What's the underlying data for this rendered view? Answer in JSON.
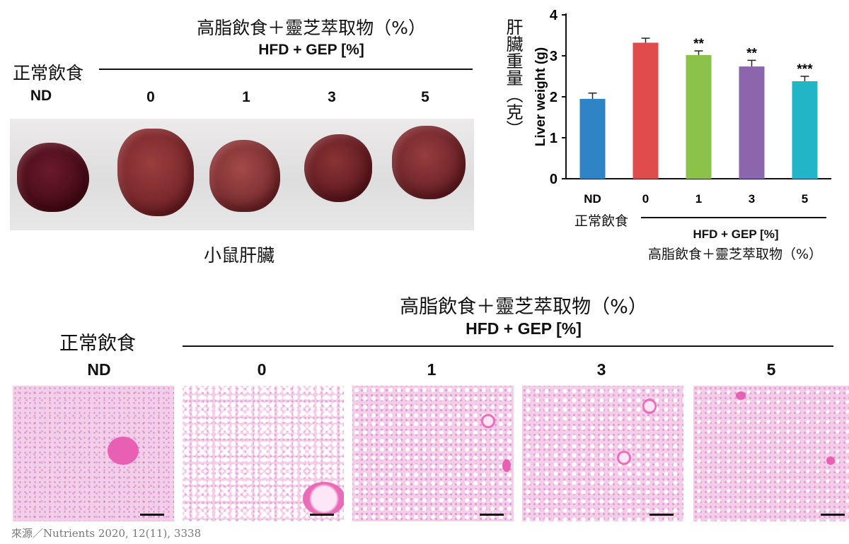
{
  "top_left": {
    "title_zh": "高脂飲食＋靈芝萃取物（%）",
    "title_en": "HFD + GEP [%]",
    "normal_diet_zh": "正常飲食",
    "groups": [
      "ND",
      "0",
      "1",
      "3",
      "5"
    ],
    "caption_zh": "小鼠肝臟"
  },
  "chart_data": {
    "type": "bar",
    "categories": [
      "ND",
      "0",
      "1",
      "3",
      "5"
    ],
    "values": [
      1.95,
      3.32,
      3.02,
      2.74,
      2.38
    ],
    "errors": [
      0.14,
      0.11,
      0.1,
      0.15,
      0.12
    ],
    "significance": [
      "",
      "",
      "**",
      "**",
      "***"
    ],
    "colors": [
      "#2f84c6",
      "#e04c4c",
      "#8bc34a",
      "#8c66ad",
      "#22b5c8"
    ],
    "ylabel_en": "Liver weight (g)",
    "ylabel_zh": "肝臟重量（克）",
    "yticks": [
      "0",
      "1",
      "2",
      "3",
      "4"
    ],
    "ylim": [
      0,
      4
    ],
    "normal_diet_zh": "正常飲食",
    "hfd_en": "HFD + GEP [%]",
    "hfd_zh": "高脂飲食＋靈芝萃取物（%）"
  },
  "bottom": {
    "title_zh": "高脂飲食＋靈芝萃取物（%）",
    "title_en": "HFD + GEP [%]",
    "normal_diet_zh": "正常飲食",
    "groups": [
      "ND",
      "0",
      "1",
      "3",
      "5"
    ]
  },
  "source": "來源／Nutrients 2020, 12(11), 3338"
}
